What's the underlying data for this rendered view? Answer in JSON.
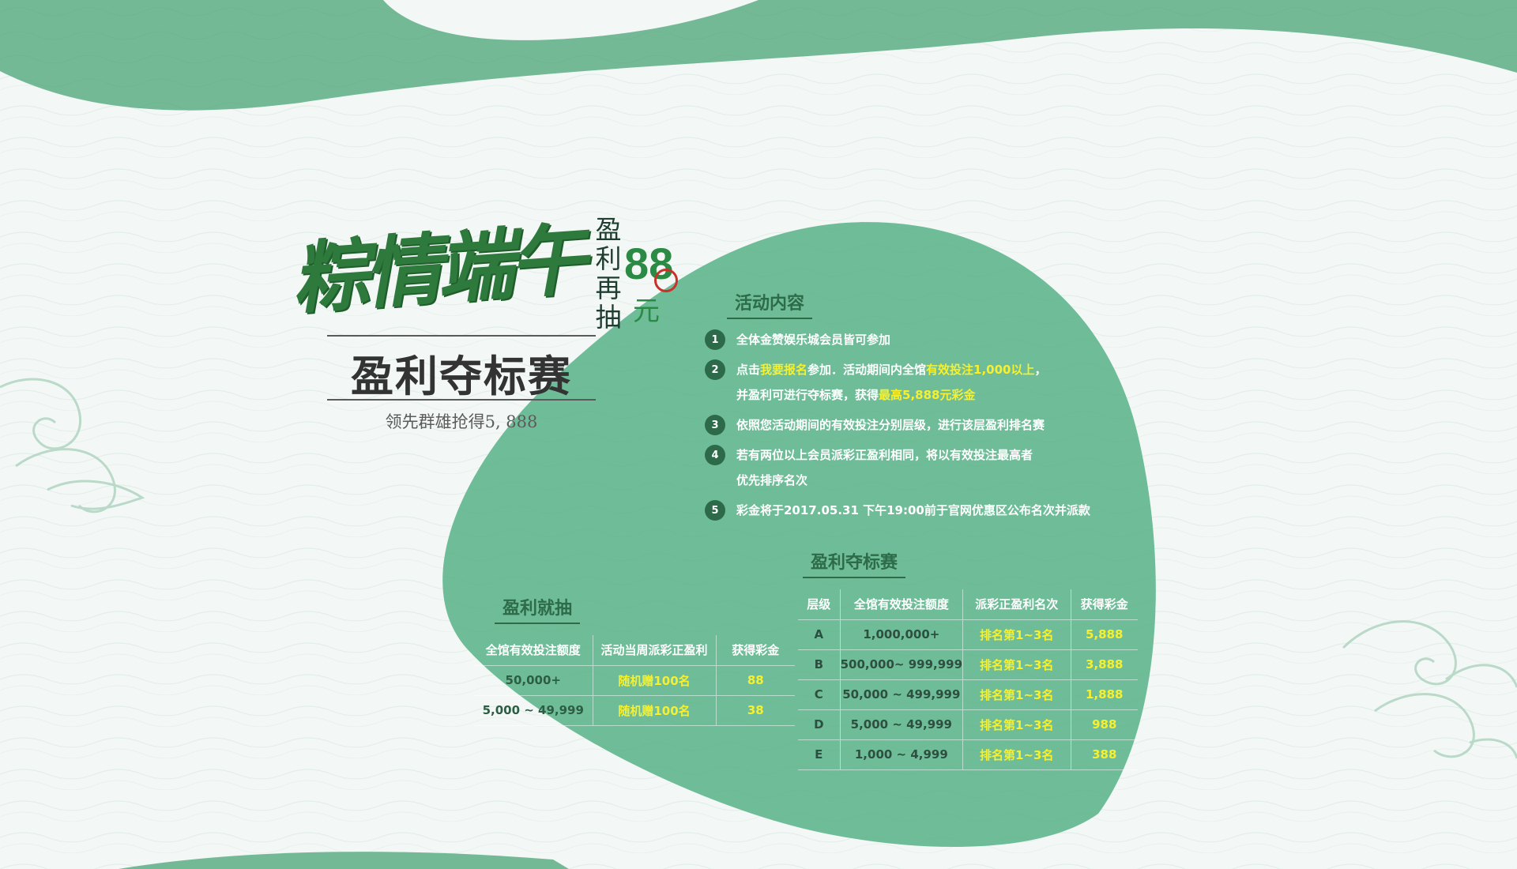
{
  "colors": {
    "background": "#f3f8f6",
    "band": "#74b995",
    "blob": "#6fbd98",
    "title_green": "#2e7a3c",
    "highlight": "#f6f02e"
  },
  "hero": {
    "calligraphy": "粽情端午",
    "vertical_text": "盈利再抽",
    "bonus_amount": "88",
    "bonus_unit": "元",
    "main_title": "盈利夺标赛",
    "subtitle": "领先群雄抢得5, 888"
  },
  "activity": {
    "heading": "活动内容",
    "rules": [
      {
        "num": "1",
        "parts": [
          {
            "t": "全体金赞娱乐城会员皆可参加",
            "hl": false
          }
        ]
      },
      {
        "num": "2",
        "parts": [
          {
            "t": "点击",
            "hl": false
          },
          {
            "t": "我要报名",
            "hl": true
          },
          {
            "t": "参加．活动期间内全馆",
            "hl": false
          },
          {
            "t": "有效投注1,000以上",
            "hl": true
          },
          {
            "t": "，",
            "hl": false
          },
          {
            "t": "并盈利可进行夺标赛，获得",
            "hl": false,
            "br": true
          },
          {
            "t": "最高5,888元彩金",
            "hl": true
          }
        ]
      },
      {
        "num": "3",
        "parts": [
          {
            "t": "依照您活动期间的有效投注分别层级，进行该层盈利排名赛",
            "hl": false
          }
        ]
      },
      {
        "num": "4",
        "parts": [
          {
            "t": "若有两位以上会员派彩正盈利相同，将以有效投注最高者",
            "hl": false
          },
          {
            "t": "优先排序名次",
            "hl": false,
            "br": true
          }
        ]
      },
      {
        "num": "5",
        "parts": [
          {
            "t": "彩金将于2017.05.31 下午19:00前于官网优惠区公布名次并派款",
            "hl": false
          }
        ]
      }
    ]
  },
  "profit_draw": {
    "heading": "盈利就抽",
    "columns": [
      "全馆有效投注额度",
      "活动当周派彩正盈利",
      "获得彩金"
    ],
    "rows": [
      [
        "50,000+",
        "随机赠100名",
        "88"
      ],
      [
        "5,000 ~ 49,999",
        "随机赠100名",
        "38"
      ]
    ]
  },
  "profit_contest": {
    "heading": "盈利夺标赛",
    "columns": [
      "层级",
      "全馆有效投注额度",
      "派彩正盈利名次",
      "获得彩金"
    ],
    "rows": [
      [
        "A",
        "1,000,000+",
        "排名第1~3名",
        "5,888"
      ],
      [
        "B",
        "500,000~ 999,999",
        "排名第1~3名",
        "3,888"
      ],
      [
        "C",
        "50,000 ~ 499,999",
        "排名第1~3名",
        "1,888"
      ],
      [
        "D",
        "5,000 ~ 49,999",
        "排名第1~3名",
        "988"
      ],
      [
        "E",
        "1,000 ~ 4,999",
        "排名第1~3名",
        "388"
      ]
    ]
  }
}
